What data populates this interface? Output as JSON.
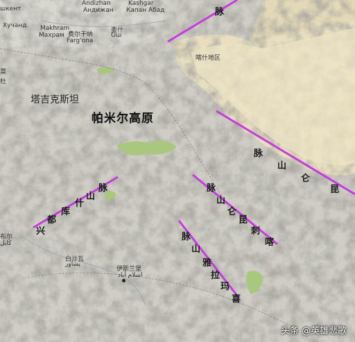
{
  "map": {
    "colors": {
      "range_line": "#c53be0",
      "desert": "#e9dfc0",
      "mountain": "#a6a49c",
      "valley": "#a9c77d"
    },
    "labels": {
      "top_latin_1": "Andizhan",
      "top_cyr_1": "Андижан",
      "top_latin_2": "Kashgar",
      "top_cyr_2": "Капан Абад",
      "tashkent": "шкент",
      "khujand": "Хучанд",
      "makhram": "Makhram",
      "makhram_cyr": "Махрам",
      "fergana_cn": "费尔干纳",
      "fergana_lat": "Farg'ona",
      "osh_cn": "奥什",
      "osh_lat": "Ош",
      "kashgar_region": "喀什地区",
      "tajikistan": "塔吉克斯坦",
      "pamir": "帕米尔高原",
      "peshawar_cn": "白沙瓦",
      "peshawar_local": "پشاور",
      "islamabad_cn": "伊斯兰堡",
      "islamabad_local": "اسلام آباد",
      "kabul_cn": "布尔",
      "kabul_local": "کابل",
      "left_edge_1": "莫",
      "left_edge_2": "杜"
    },
    "ranges": {
      "tianshan_char": "脉",
      "hindukush": [
        "兴",
        "都",
        "库",
        "什",
        "山",
        "脉"
      ],
      "kunlun": [
        "脉",
        "山",
        "仑",
        "昆"
      ],
      "karakoram": [
        "脉",
        "山",
        "仑",
        "昆",
        "刺",
        "喀"
      ],
      "himalaya": [
        "脉",
        "山",
        "雅",
        "拉",
        "玛",
        "喜"
      ]
    },
    "watermark": "头条 @英雄悲歌"
  }
}
